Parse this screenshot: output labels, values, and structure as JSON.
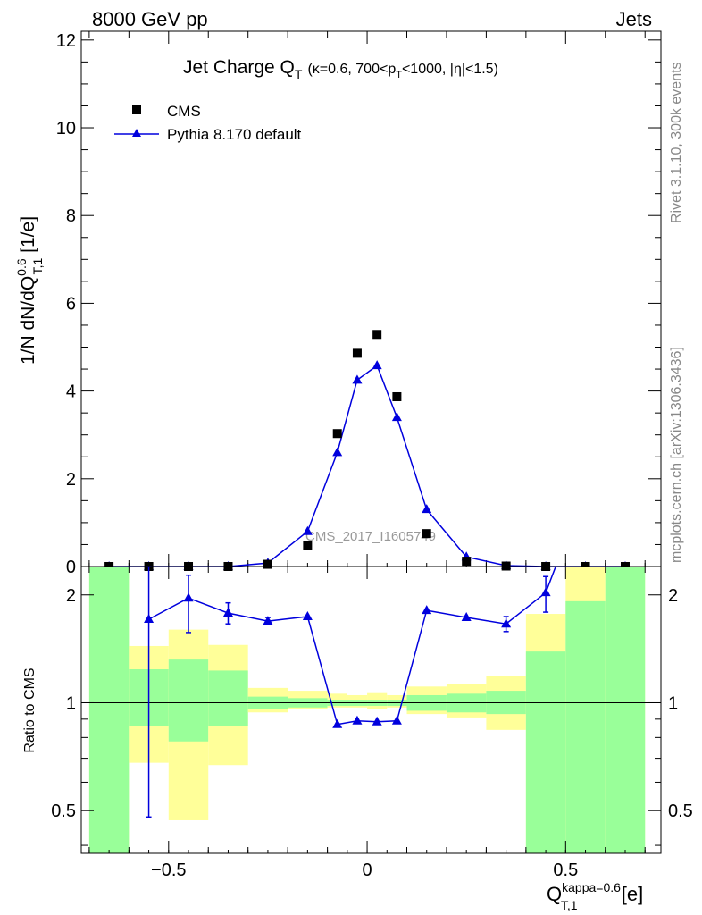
{
  "header": {
    "left": "8000 GeV pp",
    "right": "Jets"
  },
  "side_labels": {
    "rivet": "Rivet 3.1.10,  300k events",
    "mcplots": "mcplots.cern.ch [arXiv:1306.3436]"
  },
  "watermark": "CMS_2017_I1605749",
  "chart_data": [
    {
      "type": "scatter",
      "panel": "main",
      "title_main": "Jet Charge Q",
      "title_sub": "T",
      "title_cond": "(κ=0.6, 700<p",
      "title_cond_sub": "T",
      "title_cond_end": "<1000, |η|<1.5)",
      "ylabel_pre": "1/N dN/dQ",
      "ylabel_sup": "0.6",
      "ylabel_sub": "T,1",
      "ylabel_post": " [1/e]",
      "xlim": [
        -0.72,
        0.74
      ],
      "ylim": [
        0,
        12.2
      ],
      "yticks": [
        0,
        2,
        4,
        6,
        8,
        10,
        12
      ],
      "ytick_labels": [
        "0",
        "2",
        "4",
        "6",
        "8",
        "10",
        "12"
      ],
      "legend_position": "top-left",
      "series": [
        {
          "name": "CMS",
          "marker": "square",
          "color": "#000000",
          "x": [
            -0.65,
            -0.55,
            -0.45,
            -0.35,
            -0.25,
            -0.15,
            -0.075,
            -0.025,
            0.025,
            0.075,
            0.15,
            0.25,
            0.35,
            0.45,
            0.55,
            0.65
          ],
          "y": [
            0.0,
            0.0,
            0.0,
            0.0,
            0.05,
            0.48,
            3.03,
            4.86,
            5.29,
            3.87,
            0.75,
            0.12,
            0.01,
            0.0,
            0.0,
            0.0
          ]
        },
        {
          "name": "Pythia 8.170 default",
          "marker": "triangle",
          "color": "#0000dd",
          "x": [
            -0.65,
            -0.55,
            -0.45,
            -0.35,
            -0.25,
            -0.15,
            -0.075,
            -0.025,
            0.025,
            0.075,
            0.15,
            0.25,
            0.35,
            0.45,
            0.55,
            0.65
          ],
          "y": [
            0.0,
            0.0,
            0.0,
            0.0,
            0.08,
            0.8,
            2.6,
            4.25,
            4.58,
            3.4,
            1.3,
            0.22,
            0.02,
            0.0,
            0.0,
            0.0
          ]
        }
      ]
    },
    {
      "type": "line",
      "panel": "ratio",
      "ylabel": "Ratio to CMS",
      "xlabel_main": "Q",
      "xlabel_sup": "kappa=0.6",
      "xlabel_sub": "T,1",
      "xlabel_unit": " [e]",
      "xlim": [
        -0.72,
        0.74
      ],
      "ylim_log": [
        0.38,
        2.4
      ],
      "yticks": [
        0.5,
        1,
        2
      ],
      "ytick_labels": [
        "0.5",
        "1",
        "2"
      ],
      "xticks": [
        -0.5,
        0,
        0.5
      ],
      "xtick_labels": [
        "−0.5",
        "0",
        "0.5"
      ],
      "colors": {
        "band_inner": "#99ff99",
        "band_outer": "#ffff99",
        "mc": "#0000dd"
      },
      "bands": [
        {
          "x0": -0.7,
          "x1": -0.6,
          "in_lo": 0.38,
          "in_hi": 2.4,
          "out_lo": 0.38,
          "out_hi": 2.4
        },
        {
          "x0": -0.6,
          "x1": -0.5,
          "in_lo": 0.86,
          "in_hi": 1.24,
          "out_lo": 0.68,
          "out_hi": 1.44
        },
        {
          "x0": -0.5,
          "x1": -0.4,
          "in_lo": 0.78,
          "in_hi": 1.32,
          "out_lo": 0.47,
          "out_hi": 1.6
        },
        {
          "x0": -0.4,
          "x1": -0.3,
          "in_lo": 0.86,
          "in_hi": 1.23,
          "out_lo": 0.67,
          "out_hi": 1.45
        },
        {
          "x0": -0.3,
          "x1": -0.2,
          "in_lo": 0.96,
          "in_hi": 1.04,
          "out_lo": 0.94,
          "out_hi": 1.1
        },
        {
          "x0": -0.2,
          "x1": -0.1,
          "in_lo": 0.97,
          "in_hi": 1.03,
          "out_lo": 0.96,
          "out_hi": 1.08
        },
        {
          "x0": -0.1,
          "x1": -0.05,
          "in_lo": 0.98,
          "in_hi": 1.02,
          "out_lo": 0.97,
          "out_hi": 1.06
        },
        {
          "x0": -0.05,
          "x1": 0.0,
          "in_lo": 0.98,
          "in_hi": 1.02,
          "out_lo": 0.97,
          "out_hi": 1.05
        },
        {
          "x0": 0.0,
          "x1": 0.05,
          "in_lo": 0.98,
          "in_hi": 1.02,
          "out_lo": 0.96,
          "out_hi": 1.07
        },
        {
          "x0": 0.05,
          "x1": 0.1,
          "in_lo": 0.98,
          "in_hi": 1.02,
          "out_lo": 0.97,
          "out_hi": 1.05
        },
        {
          "x0": 0.1,
          "x1": 0.2,
          "in_lo": 0.95,
          "in_hi": 1.05,
          "out_lo": 0.93,
          "out_hi": 1.11
        },
        {
          "x0": 0.2,
          "x1": 0.3,
          "in_lo": 0.94,
          "in_hi": 1.06,
          "out_lo": 0.91,
          "out_hi": 1.13
        },
        {
          "x0": 0.3,
          "x1": 0.4,
          "in_lo": 0.93,
          "in_hi": 1.08,
          "out_lo": 0.84,
          "out_hi": 1.19
        },
        {
          "x0": 0.4,
          "x1": 0.5,
          "in_lo": 0.38,
          "in_hi": 1.39,
          "out_lo": 0.38,
          "out_hi": 1.77
        },
        {
          "x0": 0.5,
          "x1": 0.6,
          "in_lo": 0.38,
          "in_hi": 1.92,
          "out_lo": 0.38,
          "out_hi": 2.4
        },
        {
          "x0": 0.6,
          "x1": 0.7,
          "in_lo": 0.38,
          "in_hi": 2.4,
          "out_lo": 0.38,
          "out_hi": 2.4
        }
      ],
      "mc_ratio": {
        "x": [
          -0.55,
          -0.45,
          -0.35,
          -0.25,
          -0.15,
          -0.075,
          -0.025,
          0.025,
          0.075,
          0.15,
          0.25,
          0.35,
          0.45,
          0.475
        ],
        "y": [
          1.71,
          1.96,
          1.78,
          1.69,
          1.74,
          0.87,
          0.89,
          0.885,
          0.89,
          1.81,
          1.73,
          1.66,
          2.03,
          2.4
        ],
        "err_lo": [
          1.23,
          0.39,
          0.12,
          0.04,
          0.0,
          0.0,
          0.0,
          0.0,
          0.0,
          0.0,
          0.0,
          0.08,
          0.24,
          0.0
        ],
        "err_hi": [
          0.69,
          0.31,
          0.12,
          0.04,
          0.0,
          0.0,
          0.0,
          0.0,
          0.0,
          0.0,
          0.0,
          0.08,
          0.22,
          0.0
        ],
        "markers": [
          true,
          true,
          true,
          true,
          true,
          true,
          true,
          true,
          true,
          true,
          true,
          true,
          true,
          false
        ]
      }
    }
  ]
}
